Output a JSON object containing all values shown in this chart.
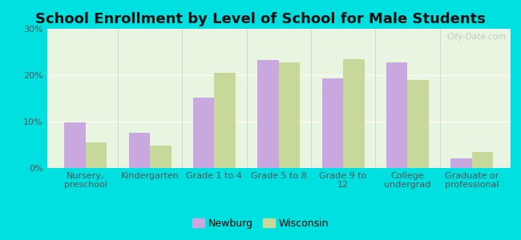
{
  "title": "School Enrollment by Level of School for Male Students",
  "categories": [
    "Nursery,\npreschool",
    "Kindergarten",
    "Grade 1 to 4",
    "Grade 5 to 8",
    "Grade 9 to\n12",
    "College\nundergrad",
    "Graduate or\nprofessional"
  ],
  "newburg_values": [
    9.8,
    7.6,
    15.2,
    23.3,
    19.3,
    22.8,
    2.0
  ],
  "wisconsin_values": [
    5.5,
    4.8,
    20.5,
    22.7,
    23.5,
    19.0,
    3.5
  ],
  "newburg_color": "#c9a8e0",
  "wisconsin_color": "#c8d89a",
  "background_color": "#00e0e0",
  "plot_bg_color": "#e8f5e0",
  "ylim": [
    0,
    30
  ],
  "yticks": [
    0,
    10,
    20,
    30
  ],
  "ytick_labels": [
    "0%",
    "10%",
    "20%",
    "30%"
  ],
  "legend_newburg": "Newburg",
  "legend_wisconsin": "Wisconsin",
  "title_fontsize": 13,
  "tick_fontsize": 8,
  "legend_fontsize": 9
}
